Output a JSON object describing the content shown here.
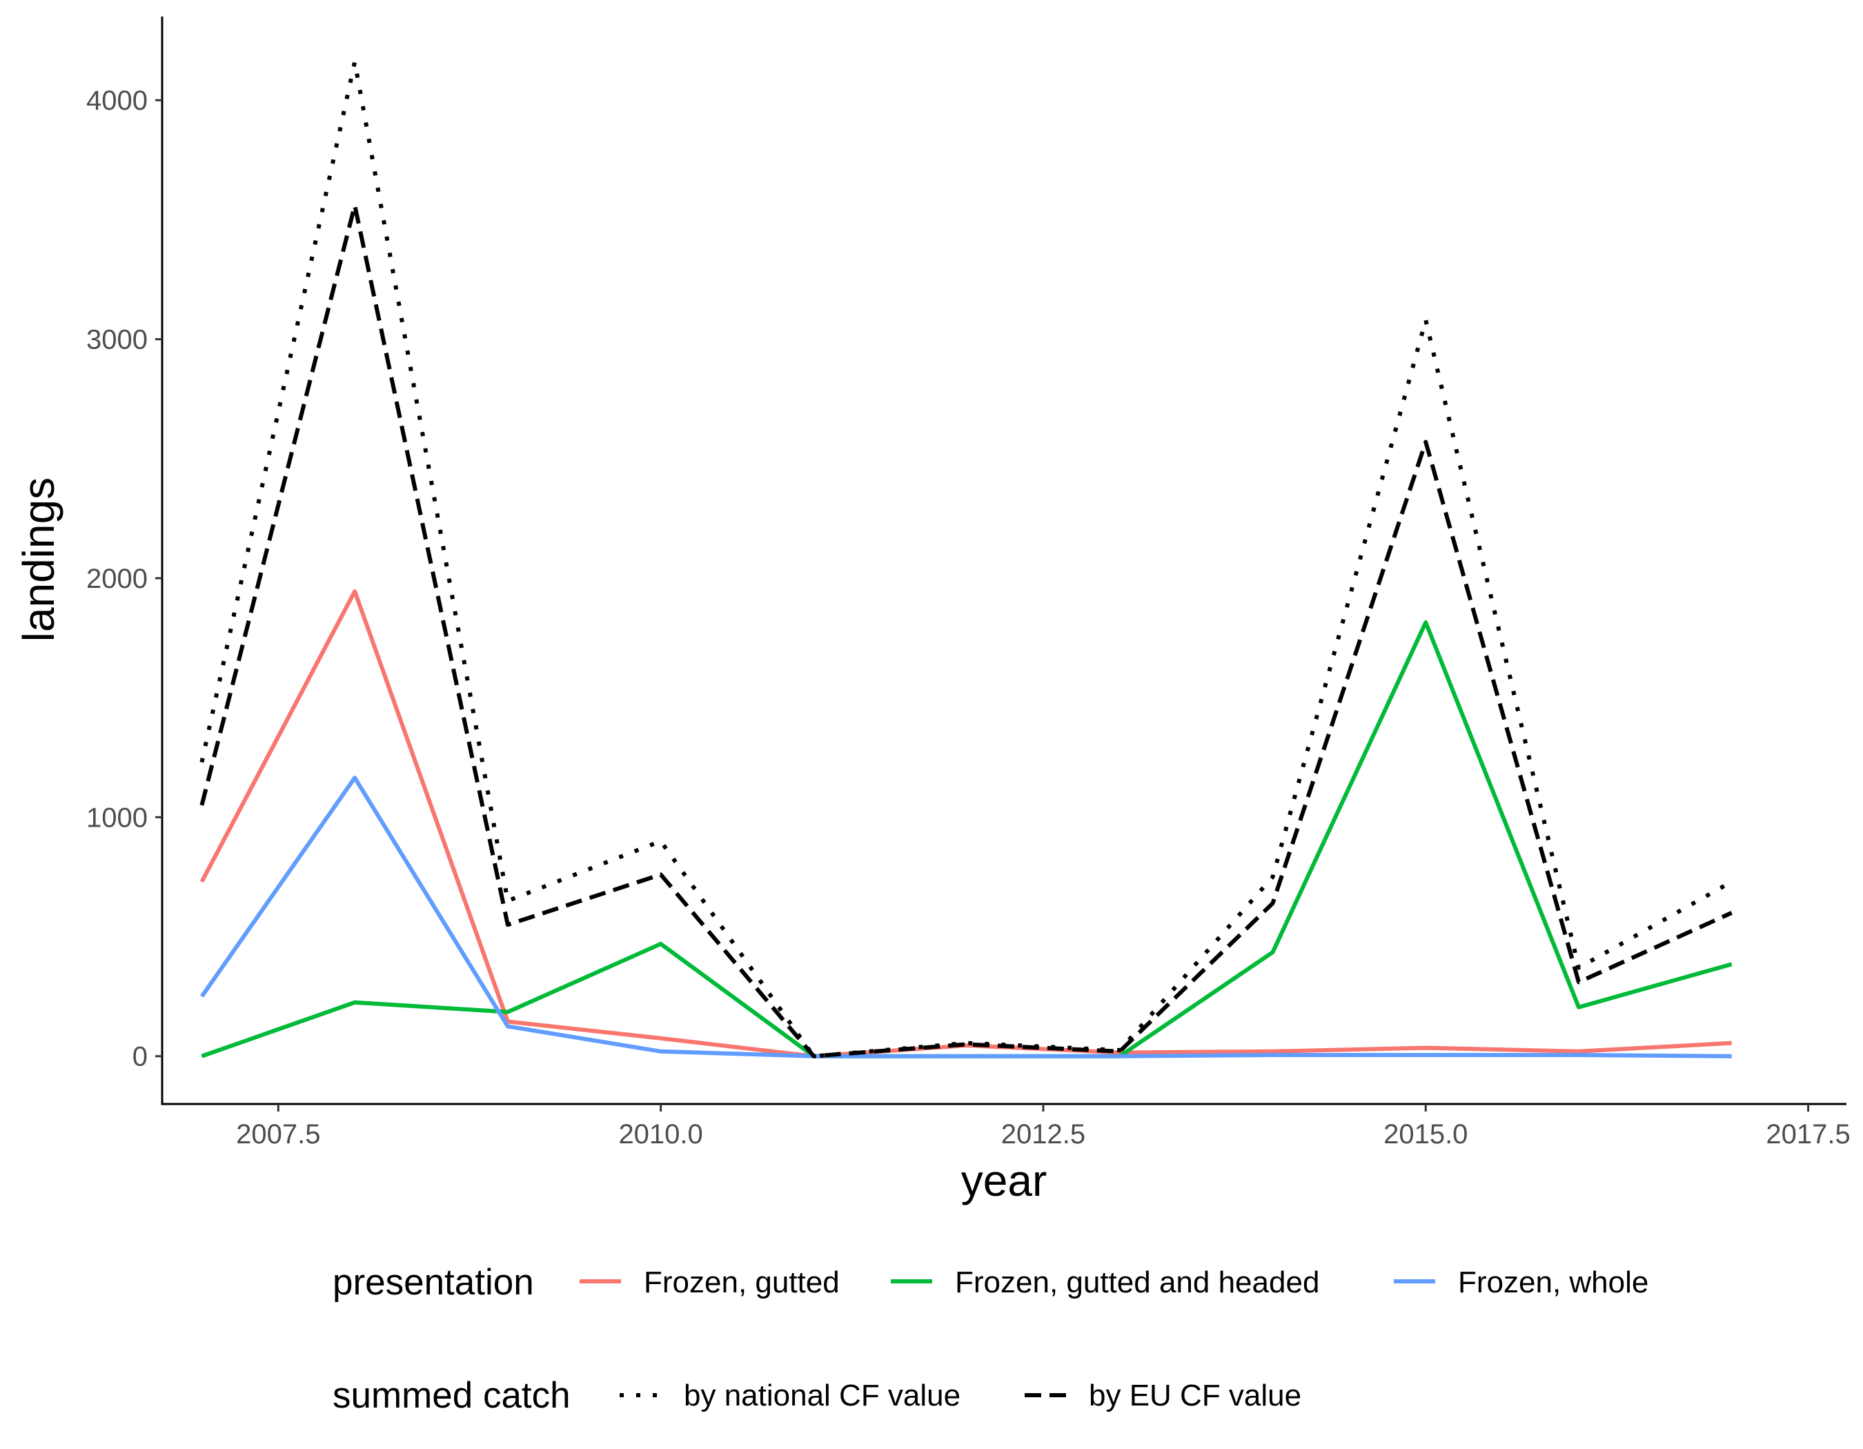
{
  "chart_data": {
    "type": "line",
    "xlabel": "year",
    "ylabel": "landings",
    "xlim": [
      2006.75,
      2017.75
    ],
    "ylim": [
      -200,
      4350
    ],
    "x_ticks": [
      2007.5,
      2010.0,
      2012.5,
      2015.0,
      2017.5
    ],
    "x_tick_labels": [
      "2007.5",
      "2010.0",
      "2012.5",
      "2015.0",
      "2017.5"
    ],
    "y_ticks": [
      0,
      1000,
      2000,
      3000,
      4000
    ],
    "y_tick_labels": [
      "0",
      "1000",
      "2000",
      "3000",
      "4000"
    ],
    "x": [
      2007,
      2008,
      2009,
      2010,
      2011,
      2012,
      2013,
      2014,
      2015,
      2016,
      2017
    ],
    "grid": false,
    "legend_position": "bottom",
    "legends": [
      {
        "title": "presentation",
        "series": [
          {
            "name": "Frozen, gutted",
            "color": "#F8766D",
            "style": "solid",
            "values": [
              730,
              1945,
              145,
              75,
              0,
              45,
              15,
              20,
              35,
              20,
              55
            ]
          },
          {
            "name": "Frozen, gutted and headed",
            "color": "#00BA38",
            "style": "solid",
            "values": [
              0,
              225,
              185,
              470,
              0,
              0,
              0,
              435,
              1815,
              205,
              385
            ]
          },
          {
            "name": "Frozen, whole",
            "color": "#619CFF",
            "style": "solid",
            "values": [
              250,
              1165,
              125,
              20,
              0,
              0,
              0,
              5,
              5,
              5,
              0
            ]
          }
        ]
      },
      {
        "title": "summed catch",
        "series": [
          {
            "name": "by national CF value",
            "color": "#000000",
            "style": "dotted",
            "values": [
              1230,
              4160,
              650,
              900,
              0,
              55,
              25,
              750,
              3080,
              370,
              730
            ]
          },
          {
            "name": "by EU CF value",
            "color": "#000000",
            "style": "dashed",
            "values": [
              1050,
              3560,
              550,
              760,
              0,
              50,
              20,
              640,
              2570,
              310,
              600
            ]
          }
        ]
      }
    ]
  }
}
